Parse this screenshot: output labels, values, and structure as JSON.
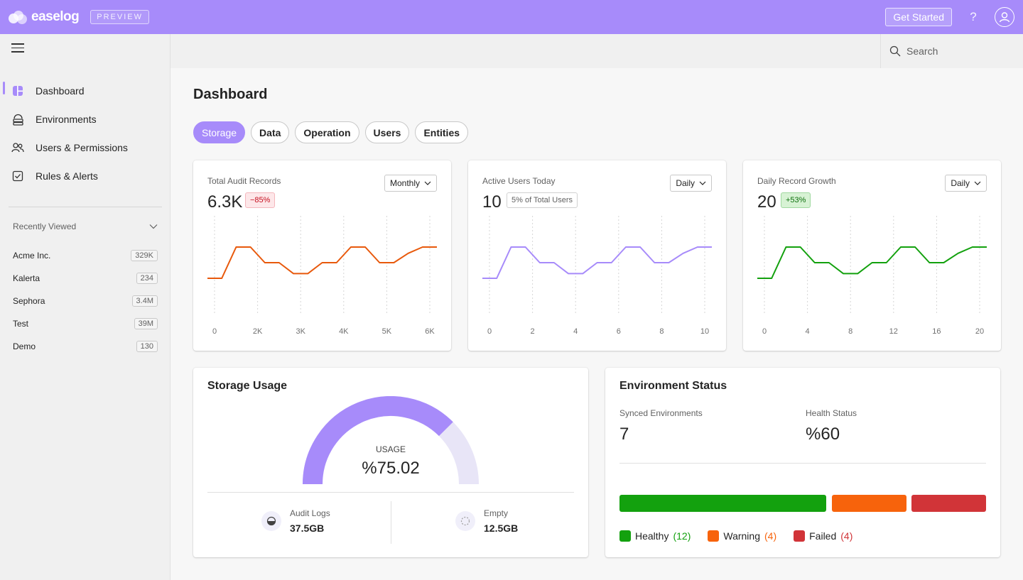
{
  "app": {
    "name": "easelog",
    "preview_badge": "PREVIEW"
  },
  "topbar": {
    "get_started": "Get Started",
    "help": "?"
  },
  "sidebar": {
    "items": [
      {
        "label": "Dashboard",
        "icon": "dashboard-icon",
        "active": true
      },
      {
        "label": "Environments",
        "icon": "environments-icon"
      },
      {
        "label": "Users & Permissions",
        "icon": "users-icon"
      },
      {
        "label": "Rules & Alerts",
        "icon": "checkbox-icon"
      }
    ],
    "recent_title": "Recently Viewed",
    "recent": [
      {
        "name": "Acme Inc.",
        "count": "329K"
      },
      {
        "name": "Kalerta",
        "count": "234"
      },
      {
        "name": "Sephora",
        "count": "3.4M"
      },
      {
        "name": "Test",
        "count": "39M"
      },
      {
        "name": "Demo",
        "count": "130"
      }
    ]
  },
  "search": {
    "placeholder": "Search"
  },
  "page": {
    "title": "Dashboard"
  },
  "tabs": [
    {
      "label": "Storage",
      "active": true
    },
    {
      "label": "Data"
    },
    {
      "label": "Operation"
    },
    {
      "label": "Users"
    },
    {
      "label": "Entities"
    }
  ],
  "mini_cards": [
    {
      "title": "Total Audit Records",
      "value": "6.3K",
      "badge": "−85%",
      "badge_type": "red",
      "period": "Monthly",
      "color": "#e8590c"
    },
    {
      "title": "Active Users Today",
      "value": "10",
      "badge": "5% of Total Users",
      "badge_type": "grey",
      "period": "Daily",
      "color": "#a78bfa"
    },
    {
      "title": "Daily Record Growth",
      "value": "20",
      "badge": "+53%",
      "badge_type": "green",
      "period": "Daily",
      "color": "#13a10e"
    }
  ],
  "chart_data": [
    {
      "type": "line",
      "x_ticks": [
        "0",
        "2K",
        "3K",
        "4K",
        "5K",
        "6K"
      ],
      "values": [
        1,
        1,
        3,
        3,
        2,
        2,
        1.3,
        1.3,
        2,
        2,
        3,
        3,
        2,
        2,
        2.6,
        3,
        3
      ],
      "ylim": [
        0,
        4
      ],
      "grid": "vertical"
    },
    {
      "type": "line",
      "x_ticks": [
        "0",
        "2",
        "4",
        "6",
        "8",
        "10"
      ],
      "values": [
        1,
        1,
        3,
        3,
        2,
        2,
        1.3,
        1.3,
        2,
        2,
        3,
        3,
        2,
        2,
        2.6,
        3,
        3
      ],
      "ylim": [
        0,
        4
      ],
      "grid": "vertical"
    },
    {
      "type": "line",
      "x_ticks": [
        "0",
        "4",
        "8",
        "12",
        "16",
        "20"
      ],
      "values": [
        1,
        1,
        3,
        3,
        2,
        2,
        1.3,
        1.3,
        2,
        2,
        3,
        3,
        2,
        2,
        2.6,
        3,
        3
      ],
      "ylim": [
        0,
        4
      ],
      "grid": "vertical"
    }
  ],
  "storage": {
    "title": "Storage Usage",
    "usage_label": "USAGE",
    "usage_value": "%75.02",
    "usage_fraction": 0.7502,
    "used_color": "#a78bfa",
    "empty_color": "#e8e5f7",
    "legend": [
      {
        "name": "Audit Logs",
        "value": "37.5GB",
        "icon": "half-disk-icon"
      },
      {
        "name": "Empty",
        "value": "12.5GB",
        "icon": "dashed-circle-icon"
      }
    ]
  },
  "environment": {
    "title": "Environment Status",
    "synced_label": "Synced Environments",
    "synced_value": "7",
    "health_label": "Health Status",
    "health_value": "%60",
    "statuses": [
      {
        "name": "Healthy",
        "count": "(12)",
        "color": "#13a10e"
      },
      {
        "name": "Warning",
        "count": "(4)",
        "color": "#f7630c"
      },
      {
        "name": "Failed",
        "count": "(4)",
        "color": "#d13438"
      }
    ]
  }
}
